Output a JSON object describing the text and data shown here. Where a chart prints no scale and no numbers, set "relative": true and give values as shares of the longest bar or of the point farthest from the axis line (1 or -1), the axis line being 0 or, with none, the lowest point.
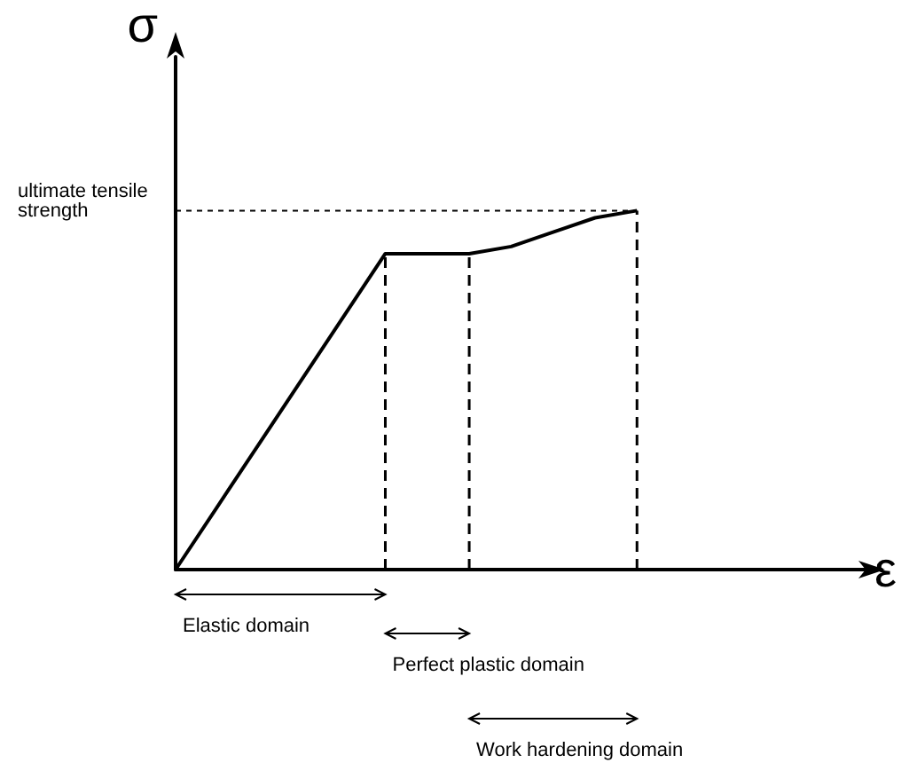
{
  "chart_data": {
    "type": "line",
    "relative": true,
    "xlabel": "ε",
    "ylabel": "σ",
    "categories": [
      null,
      null,
      null,
      null,
      null,
      null,
      null,
      null,
      null,
      null,
      null,
      null
    ],
    "series": [
      {
        "color": "#000000",
        "values": [
          0,
          0.176,
          0.352,
          0.528,
          0.704,
          0.88,
          0.88,
          0.88,
          0.9,
          0.94,
          0.98,
          1
        ]
      }
    ],
    "marker": "none",
    "line_style": "solid",
    "grid": false,
    "tick_labels": false,
    "ref_lines": [
      {
        "axis": "y",
        "value": 1,
        "label": "ultimate tensile strength",
        "line_style": "dashed",
        "color": "#000000"
      }
    ],
    "annotations": [
      "Elastic domain",
      "Perfect plastic domain",
      "Work hardening domain"
    ]
  }
}
